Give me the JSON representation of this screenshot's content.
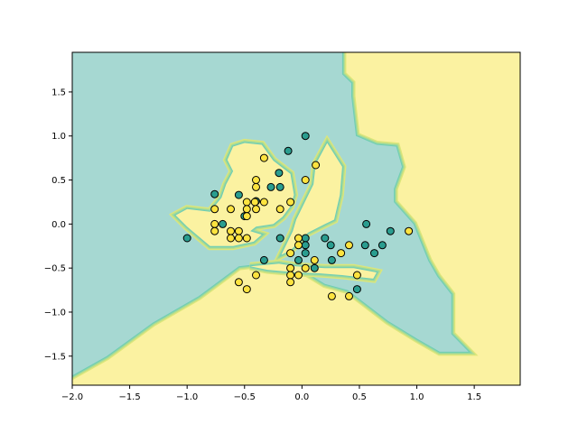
{
  "chart_data": {
    "type": "scatter",
    "title": "",
    "xlabel": "",
    "ylabel": "",
    "xlim": [
      -2.0,
      1.9
    ],
    "ylim": [
      -1.83,
      1.95
    ],
    "grid": false,
    "legend": "none",
    "x_ticks": [
      -2.0,
      -1.5,
      -1.0,
      -0.5,
      0.0,
      0.5,
      1.0,
      1.5
    ],
    "x_tick_labels": [
      "−2.0",
      "−1.5",
      "−1.0",
      "−0.5",
      "0.0",
      "0.5",
      "1.0",
      "1.5"
    ],
    "y_ticks": [
      1.5,
      1.0,
      0.5,
      0.0,
      -0.5,
      -1.0,
      -1.5
    ],
    "y_tick_labels": [
      "1.5",
      "1.0",
      "0.5",
      "0.0",
      "−0.5",
      "−1.0",
      "−1.5"
    ],
    "colors": {
      "class0_region": "#a6d8d2",
      "class1_region": "#fbf2a1",
      "boundary": [
        "#6fcdb5",
        "#8fd6a4",
        "#b8de8c",
        "#dde67a"
      ],
      "class0_marker": "#2a9d8f",
      "class1_marker": "#fde33f",
      "marker_edge": "#000000"
    },
    "decision_regions": {
      "class0_polygons": [
        [
          [
            -2.0,
            1.95
          ],
          [
            0.35,
            1.95
          ],
          [
            0.35,
            1.7
          ],
          [
            0.43,
            1.6
          ],
          [
            0.43,
            1.45
          ],
          [
            0.47,
            1.0
          ],
          [
            0.65,
            0.9
          ],
          [
            0.82,
            0.88
          ],
          [
            0.87,
            0.65
          ],
          [
            0.8,
            0.4
          ],
          [
            0.8,
            0.25
          ],
          [
            0.97,
            0.0
          ],
          [
            1.1,
            -0.42
          ],
          [
            1.18,
            -0.6
          ],
          [
            1.3,
            -0.8
          ],
          [
            1.3,
            -1.25
          ],
          [
            1.45,
            -1.45
          ],
          [
            1.2,
            -1.45
          ],
          [
            1.0,
            -1.3
          ],
          [
            0.75,
            -1.1
          ],
          [
            0.55,
            -0.9
          ],
          [
            0.4,
            -0.75
          ],
          [
            0.2,
            -0.68
          ],
          [
            -0.05,
            -0.48
          ],
          [
            -0.35,
            -0.45
          ],
          [
            -0.55,
            -0.48
          ],
          [
            -0.9,
            -0.82
          ],
          [
            -1.3,
            -1.12
          ],
          [
            -1.7,
            -1.5
          ],
          [
            -2.0,
            -1.72
          ]
        ]
      ],
      "class1_polygons": [
        [
          [
            -0.6,
            0.88
          ],
          [
            -0.5,
            0.92
          ],
          [
            -0.35,
            0.9
          ],
          [
            -0.25,
            0.72
          ],
          [
            -0.1,
            0.57
          ],
          [
            -0.07,
            0.33
          ],
          [
            -0.1,
            0.2
          ],
          [
            -0.17,
            0.08
          ],
          [
            -0.25,
            0.0
          ],
          [
            -0.4,
            -0.03
          ],
          [
            -0.45,
            -0.08
          ],
          [
            -0.35,
            -0.12
          ],
          [
            -0.42,
            -0.2
          ],
          [
            -0.6,
            -0.25
          ],
          [
            -0.8,
            -0.25
          ],
          [
            -1.0,
            -0.03
          ],
          [
            -1.1,
            0.1
          ],
          [
            -1.0,
            0.17
          ],
          [
            -0.8,
            0.14
          ],
          [
            -0.7,
            0.3
          ],
          [
            -0.66,
            0.45
          ],
          [
            -0.6,
            0.6
          ],
          [
            -0.65,
            0.73
          ]
        ],
        [
          [
            -0.05,
            0.05
          ],
          [
            0.1,
            0.45
          ],
          [
            0.12,
            0.68
          ],
          [
            0.22,
            0.92
          ],
          [
            0.35,
            0.65
          ],
          [
            0.33,
            0.33
          ],
          [
            0.28,
            0.05
          ],
          [
            0.2,
            0.0
          ],
          [
            0.05,
            -0.1
          ],
          [
            -0.1,
            -0.3
          ],
          [
            -0.18,
            -0.35
          ],
          [
            -0.08,
            -0.08
          ]
        ],
        [
          [
            -0.45,
            -0.48
          ],
          [
            -0.2,
            -0.45
          ],
          [
            -0.05,
            -0.48
          ],
          [
            0.2,
            -0.5
          ],
          [
            0.45,
            -0.5
          ],
          [
            0.65,
            -0.55
          ],
          [
            0.62,
            -0.62
          ],
          [
            0.35,
            -0.58
          ],
          [
            0.15,
            -0.56
          ],
          [
            -0.05,
            -0.55
          ],
          [
            -0.3,
            -0.52
          ]
        ]
      ]
    },
    "series": [
      {
        "class": 0,
        "points": [
          [
            0.03,
            1.0
          ],
          [
            -0.12,
            0.83
          ],
          [
            -0.2,
            0.58
          ],
          [
            -0.27,
            0.42
          ],
          [
            -0.19,
            0.42
          ],
          [
            -0.76,
            0.34
          ],
          [
            -0.55,
            0.33
          ],
          [
            -0.4,
            0.26
          ],
          [
            -0.5,
            0.09
          ],
          [
            -0.69,
            0.0
          ],
          [
            -1.0,
            -0.16
          ],
          [
            -0.19,
            -0.16
          ],
          [
            0.03,
            -0.16
          ],
          [
            0.03,
            -0.24
          ],
          [
            0.2,
            -0.16
          ],
          [
            0.25,
            -0.24
          ],
          [
            0.56,
            0.0
          ],
          [
            0.55,
            -0.24
          ],
          [
            0.7,
            -0.24
          ],
          [
            0.77,
            -0.08
          ],
          [
            0.63,
            -0.33
          ],
          [
            -0.33,
            -0.41
          ],
          [
            -0.03,
            -0.41
          ],
          [
            0.03,
            -0.33
          ],
          [
            0.26,
            -0.41
          ],
          [
            0.11,
            -0.5
          ],
          [
            0.48,
            -0.74
          ]
        ]
      },
      {
        "class": 1,
        "points": [
          [
            -0.33,
            0.75
          ],
          [
            0.12,
            0.67
          ],
          [
            -0.4,
            0.5
          ],
          [
            -0.4,
            0.42
          ],
          [
            0.03,
            0.5
          ],
          [
            -0.48,
            0.25
          ],
          [
            -0.41,
            0.25
          ],
          [
            -0.33,
            0.25
          ],
          [
            -0.1,
            0.25
          ],
          [
            -0.76,
            0.17
          ],
          [
            -0.62,
            0.17
          ],
          [
            -0.48,
            0.17
          ],
          [
            -0.4,
            0.17
          ],
          [
            -0.19,
            0.17
          ],
          [
            -0.48,
            0.09
          ],
          [
            -0.76,
            0.0
          ],
          [
            -0.76,
            -0.08
          ],
          [
            -0.62,
            -0.08
          ],
          [
            -0.55,
            -0.08
          ],
          [
            -0.62,
            -0.16
          ],
          [
            -0.55,
            -0.16
          ],
          [
            -0.48,
            -0.16
          ],
          [
            -0.03,
            -0.16
          ],
          [
            -0.03,
            -0.24
          ],
          [
            -0.1,
            -0.33
          ],
          [
            0.41,
            -0.24
          ],
          [
            0.34,
            -0.33
          ],
          [
            0.11,
            -0.41
          ],
          [
            0.03,
            -0.5
          ],
          [
            -0.1,
            -0.5
          ],
          [
            -0.03,
            -0.58
          ],
          [
            -0.1,
            -0.58
          ],
          [
            -0.4,
            -0.58
          ],
          [
            0.48,
            -0.58
          ],
          [
            -0.55,
            -0.66
          ],
          [
            -0.1,
            -0.66
          ],
          [
            -0.48,
            -0.74
          ],
          [
            0.26,
            -0.82
          ],
          [
            0.41,
            -0.82
          ],
          [
            0.93,
            -0.08
          ]
        ]
      }
    ]
  }
}
